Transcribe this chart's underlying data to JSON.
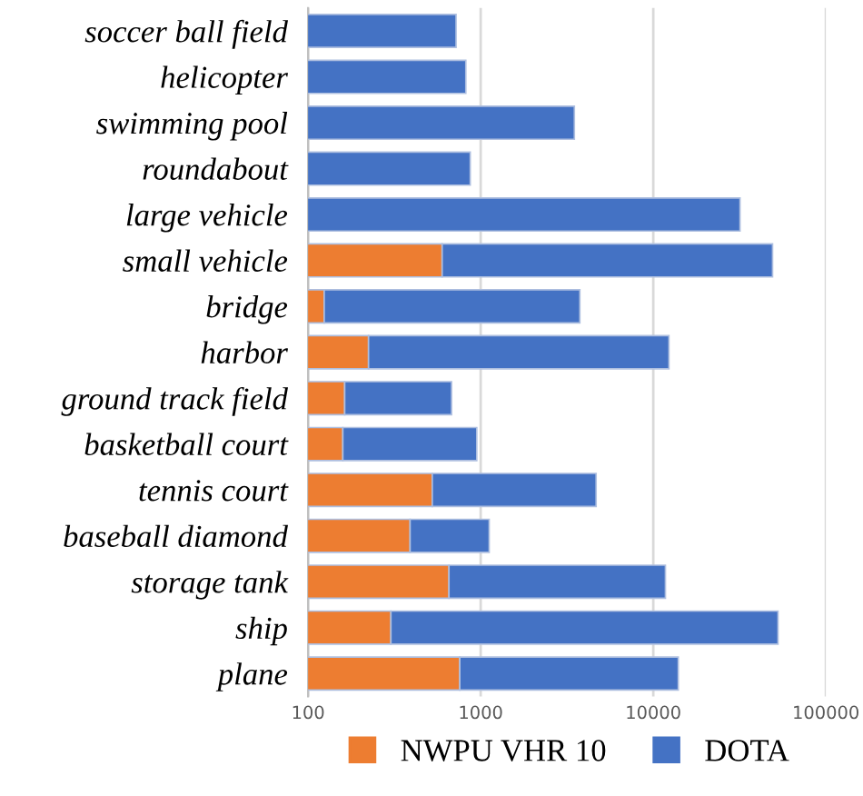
{
  "chart_data": {
    "type": "bar",
    "orientation": "horizontal",
    "stacked": true,
    "log": "x",
    "categories": [
      "soccer ball field",
      "helicopter",
      "swimming pool",
      "roundabout",
      "large vehicle",
      "small vehicle",
      "bridge",
      "harbor",
      "ground track field",
      "basketball court",
      "tennis court",
      "baseball diamond",
      "storage tank",
      "ship",
      "plane"
    ],
    "series": [
      {
        "name": "NWPU VHR 10",
        "color": "#ed7d31",
        "values": [
          null,
          null,
          null,
          null,
          null,
          598,
          124,
          224,
          163,
          159,
          524,
          390,
          655,
          302,
          757
        ]
      },
      {
        "name": "DOTA",
        "color": "#4472c4",
        "values": [
          720,
          820,
          3490,
          870,
          31800,
          48500,
          3630,
          12100,
          515,
          790,
          4140,
          730,
          11100,
          52500,
          13200
        ]
      }
    ],
    "xlim": [
      100,
      100000
    ],
    "xticks": [
      100,
      1000,
      10000,
      100000
    ],
    "grid": "x",
    "legend": "bottom"
  }
}
